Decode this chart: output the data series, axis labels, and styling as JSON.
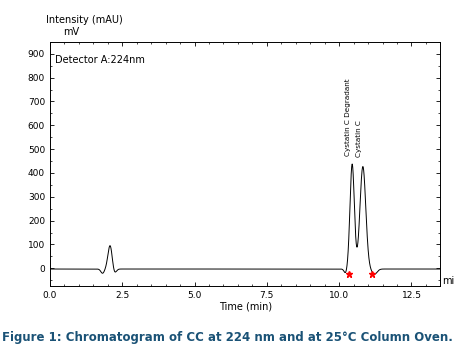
{
  "title": "Figure 1: Chromatogram of CC at 224 nm and at 25°C Column Oven.",
  "ylabel_top": "Intensity (mAU)",
  "ylabel_sub": "mV",
  "xlabel": "Time (min)",
  "detector_label": "Detector A:224nm",
  "xlim": [
    0.0,
    13.5
  ],
  "ylim": [
    -75,
    950
  ],
  "yticks": [
    0,
    100,
    200,
    300,
    400,
    500,
    600,
    700,
    800,
    900
  ],
  "xticks": [
    0.0,
    2.5,
    5.0,
    7.5,
    10.0,
    12.5
  ],
  "xtick_labels": [
    "0.0",
    "2.5",
    "5.0",
    "7.5",
    "10.0",
    "12.5"
  ],
  "line_color": "#000000",
  "background_color": "#ffffff",
  "peak1_x": 2.08,
  "peak1_y": 100,
  "peak2_x": 10.45,
  "peak2_y": 440,
  "peak2_label": "Cystatin C Degradant",
  "peak2_marker_x": 10.35,
  "peak3_x": 10.82,
  "peak3_y": 430,
  "peak3_label": "Cystatin C",
  "peak3_marker_x": 11.15,
  "marker_color": "#ff0000",
  "title_color": "#1a5276",
  "title_fontsize": 8.5,
  "label_fontsize": 5.2,
  "tick_fontsize": 6.5,
  "detector_fontsize": 7.0,
  "axis_label_fontsize": 7.0
}
